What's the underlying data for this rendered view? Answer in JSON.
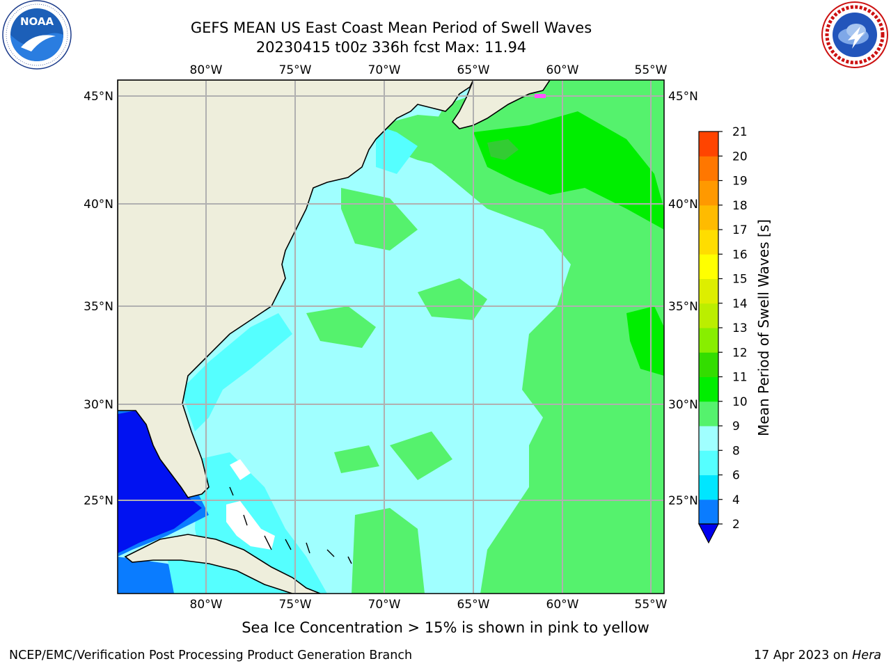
{
  "title": {
    "line1": "GEFS MEAN US East Coast Mean Period of Swell Waves",
    "line2": "20230415 t00z 336h fcst   Max: 11.94"
  },
  "logos": {
    "noaa": {
      "text": "NOAA",
      "ring_text": "NATIONAL OCEANIC AND ATMOSPHERIC ADMINISTRATION · U.S. DEPARTMENT OF COMMERCE"
    },
    "nws": {
      "ring_text": "NATIONAL WEATHER SERVICE"
    }
  },
  "map": {
    "lon_labels": [
      "80°W",
      "75°W",
      "70°W",
      "65°W",
      "60°W",
      "55°W"
    ],
    "lat_labels": [
      "45°N",
      "40°N",
      "35°N",
      "30°N",
      "25°N"
    ],
    "extent": {
      "lon": [
        -85,
        -54
      ],
      "lat": [
        20.5,
        46
      ]
    },
    "colors": {
      "land": "#eeeedc",
      "ocean_base": "#a0ffff",
      "green_light": "#55f26d",
      "green_mid": "#00ee00",
      "green_dark": "#33cc33",
      "cyan": "#55ffff",
      "blue": "#0a7cff",
      "deep_blue": "#0000ee",
      "grid": "#b0b0b0"
    }
  },
  "colorbar": {
    "label": "Mean Period of Swell Waves [s]",
    "ticks": [
      "2",
      "4",
      "6",
      "8",
      "9",
      "10",
      "11",
      "12",
      "13",
      "14",
      "15",
      "16",
      "17",
      "18",
      "19",
      "20",
      "21"
    ],
    "colors": [
      "#0a7cff",
      "#00e6ff",
      "#55ffff",
      "#a0ffff",
      "#55f26d",
      "#00ee00",
      "#33dd00",
      "#88ee00",
      "#bbee00",
      "#ddee00",
      "#ffff00",
      "#ffdd00",
      "#ffbb00",
      "#ff9900",
      "#ff7700",
      "#ff4400",
      "#ff2200",
      "#ff0000"
    ],
    "under_color": "#0000ee"
  },
  "note": "Sea Ice Concentration > 15% is shown in pink to yellow",
  "footer": {
    "left": "NCEP/EMC/Verification Post Processing Product Generation Branch",
    "right_date": "17 Apr 2023 on ",
    "right_host": "Hera"
  }
}
